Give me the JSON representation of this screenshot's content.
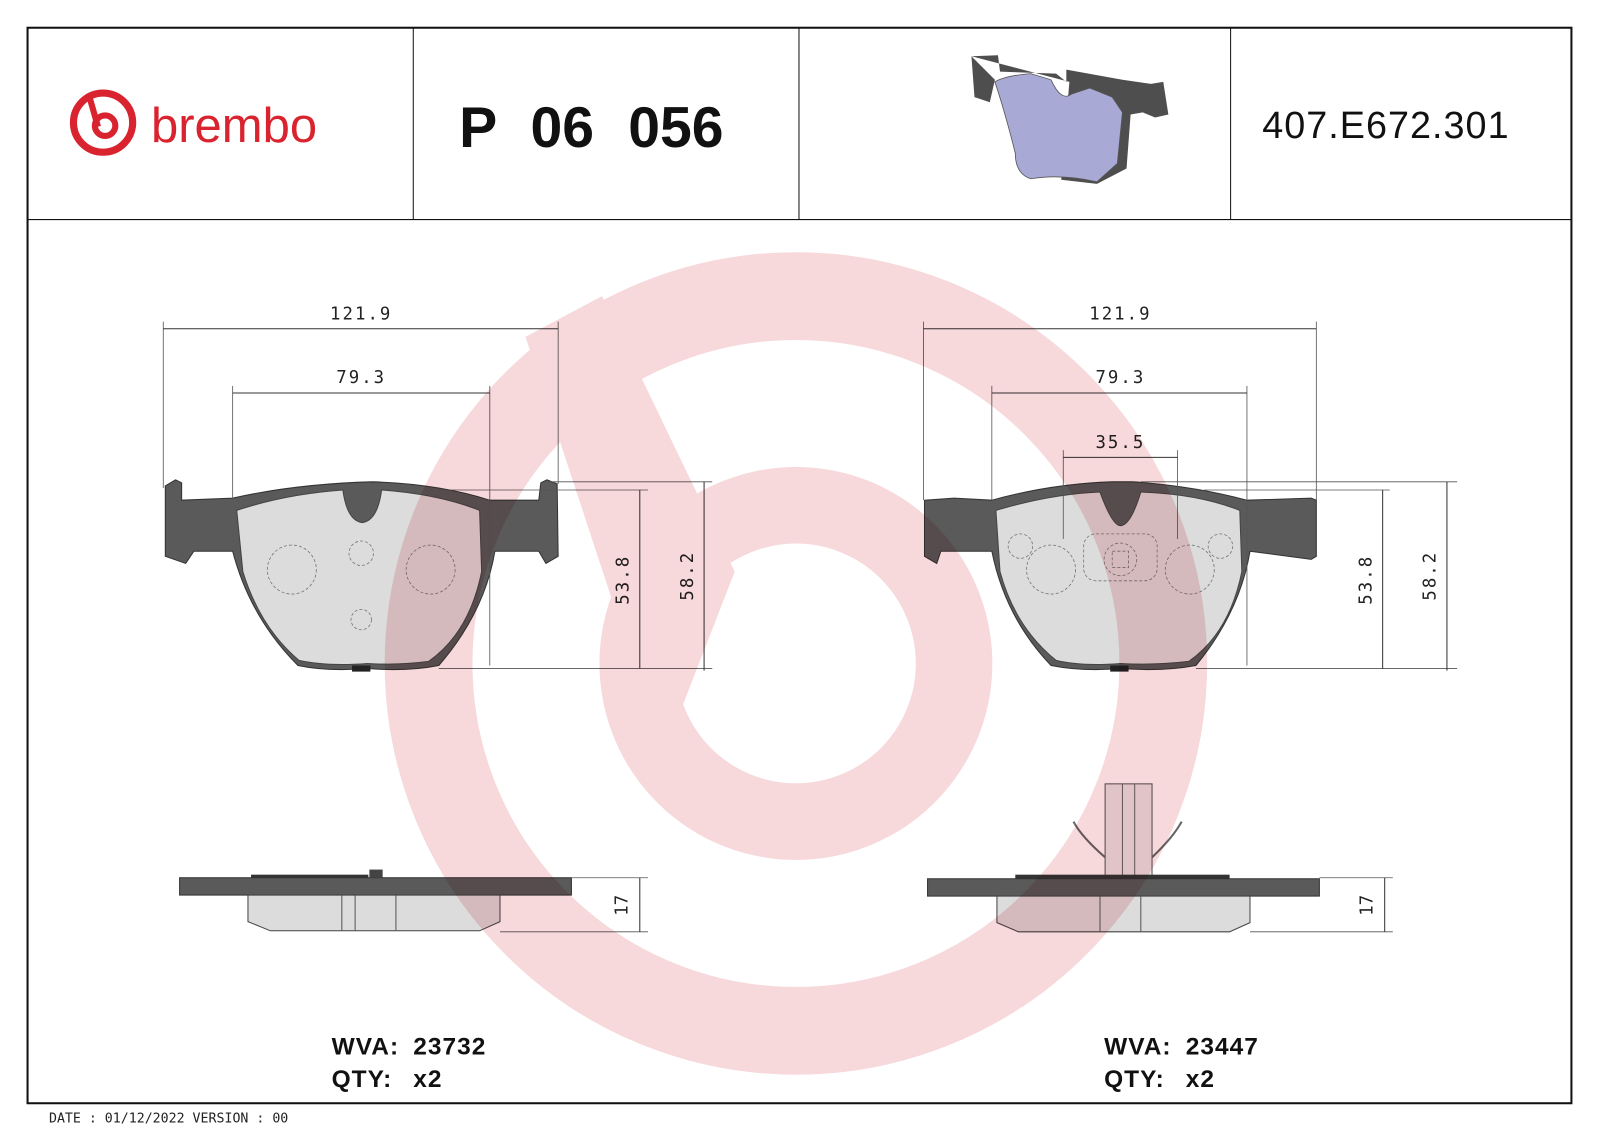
{
  "header": {
    "brand": "brembo",
    "part_number": "P 06 056",
    "reference": "407.E672.301",
    "brand_color": "#d9232e"
  },
  "left_drawing": {
    "width_total": "121.9",
    "width_inner": "79.3",
    "height_friction": "53.8",
    "height_total": "58.2",
    "thickness": "17",
    "wva_label": "WVA:",
    "wva_value": "23732",
    "qty_label": "QTY:",
    "qty_value": "x2"
  },
  "right_drawing": {
    "width_total": "121.9",
    "width_inner": "79.3",
    "width_sensor": "35.5",
    "height_friction": "53.8",
    "height_total": "58.2",
    "thickness": "17",
    "wva_label": "WVA:",
    "wva_value": "23447",
    "qty_label": "QTY:",
    "qty_value": "x2"
  },
  "footer": {
    "date_version": "DATE : 01/12/2022 VERSION : 00"
  },
  "colors": {
    "plate": "#5a5a5a",
    "friction": "#dcdcdc",
    "watermark": "#e89aa2",
    "render_pad": "#a9a9d6"
  }
}
